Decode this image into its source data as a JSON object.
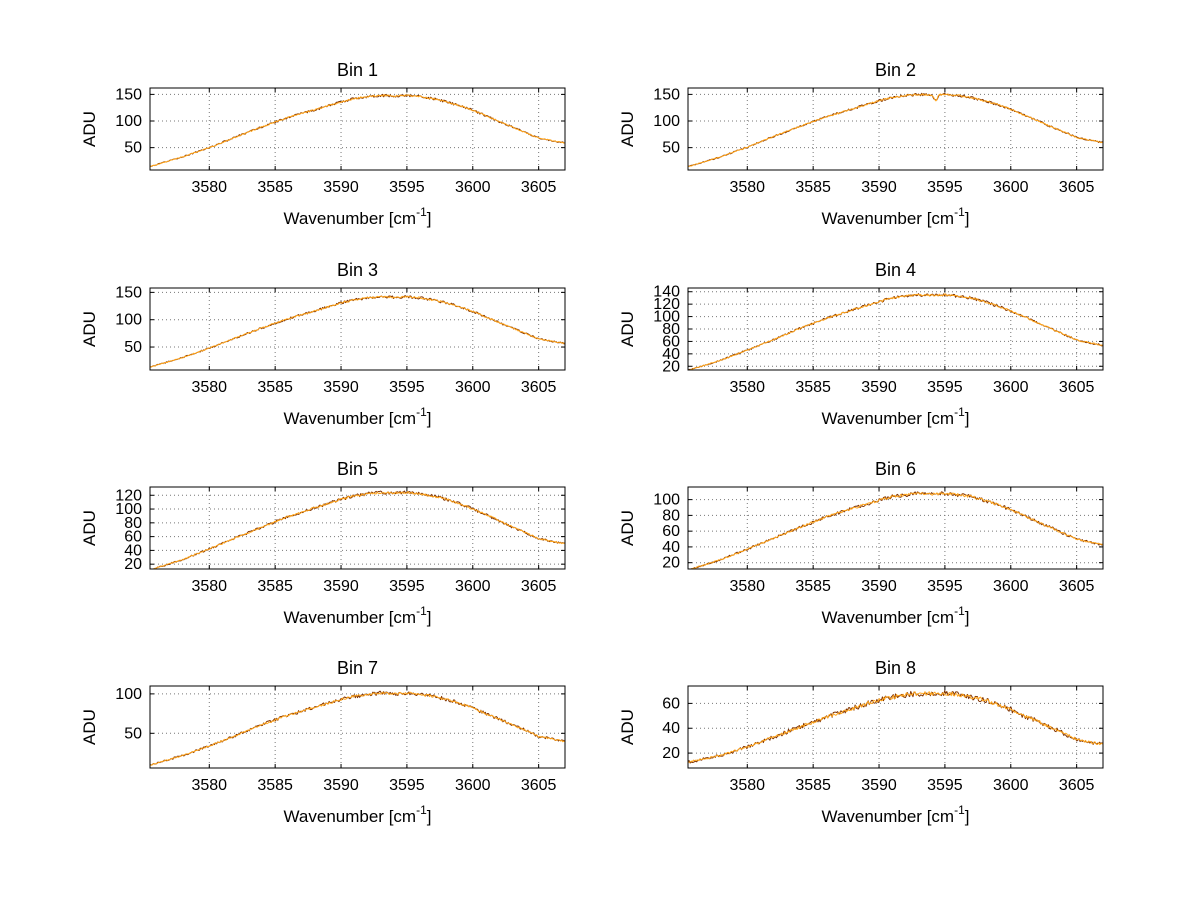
{
  "figure": {
    "background": "#ffffff",
    "ylabel": "ADU",
    "xlabel_base": "Wavenumber [cm",
    "xlabel_sup": "-1",
    "xlabel_close": "]"
  },
  "style": {
    "axis_color": "#000000",
    "grid_color": "#777777",
    "series_colors": [
      "#803300",
      "#ffa51c"
    ],
    "noise": [
      2.0,
      1.3
    ]
  },
  "chart_data": [
    {
      "type": "line",
      "title": "Bin 1",
      "xlabel": "Wavenumber [cm-1]",
      "ylabel": "ADU",
      "xlim": [
        3575.5,
        3607
      ],
      "ylim": [
        8,
        162
      ],
      "xticks": [
        3580,
        3585,
        3590,
        3595,
        3600,
        3605
      ],
      "yticks": [
        50,
        100,
        150
      ],
      "grid": true,
      "x": [
        3575.6,
        3578,
        3580,
        3582,
        3584,
        3586,
        3588,
        3590,
        3591,
        3592,
        3593,
        3594,
        3595,
        3596,
        3597,
        3598,
        3599,
        3600,
        3601,
        3602,
        3603,
        3604,
        3605,
        3606.9
      ],
      "values": [
        15,
        33,
        50,
        70,
        89,
        107,
        121,
        136,
        142,
        146,
        148,
        147,
        148,
        146,
        142,
        136,
        129,
        120,
        110,
        99,
        89,
        78,
        68,
        59
      ]
    },
    {
      "type": "line",
      "title": "Bin 2",
      "xlabel": "Wavenumber [cm-1]",
      "ylabel": "ADU",
      "xlim": [
        3575.5,
        3607
      ],
      "ylim": [
        8,
        162
      ],
      "xticks": [
        3580,
        3585,
        3590,
        3595,
        3600,
        3605
      ],
      "yticks": [
        50,
        100,
        150
      ],
      "grid": true,
      "dip": {
        "x": 3594.3,
        "depth": 11,
        "width": 0.18
      },
      "x": [
        3575.6,
        3578,
        3580,
        3582,
        3584,
        3586,
        3588,
        3590,
        3591,
        3592,
        3593,
        3594,
        3595,
        3596,
        3597,
        3598,
        3599,
        3600,
        3601,
        3602,
        3603,
        3604,
        3605,
        3606.9
      ],
      "values": [
        15,
        33,
        51,
        71,
        90,
        108,
        123,
        138,
        144,
        148,
        150,
        149,
        150,
        148,
        144,
        138,
        131,
        122,
        111,
        101,
        90,
        80,
        69,
        60
      ]
    },
    {
      "type": "line",
      "title": "Bin 3",
      "xlabel": "Wavenumber [cm-1]",
      "ylabel": "ADU",
      "xlim": [
        3575.5,
        3607
      ],
      "ylim": [
        8,
        158
      ],
      "xticks": [
        3580,
        3585,
        3590,
        3595,
        3600,
        3605
      ],
      "yticks": [
        50,
        100,
        150
      ],
      "grid": true,
      "x": [
        3575.6,
        3578,
        3580,
        3582,
        3584,
        3586,
        3588,
        3590,
        3591,
        3592,
        3593,
        3594,
        3595,
        3596,
        3597,
        3598,
        3599,
        3600,
        3601,
        3602,
        3603,
        3604,
        3605,
        3606.9
      ],
      "values": [
        14,
        31,
        48,
        67,
        85,
        102,
        116,
        131,
        136,
        140,
        142,
        141,
        142,
        140,
        136,
        131,
        124,
        115,
        105,
        95,
        85,
        75,
        65,
        57
      ]
    },
    {
      "type": "line",
      "title": "Bin 4",
      "xlabel": "Wavenumber [cm-1]",
      "ylabel": "ADU",
      "xlim": [
        3575.5,
        3607
      ],
      "ylim": [
        14,
        146
      ],
      "xticks": [
        3580,
        3585,
        3590,
        3595,
        3600,
        3605
      ],
      "yticks": [
        20,
        40,
        60,
        80,
        100,
        120,
        140
      ],
      "grid": true,
      "x": [
        3575.6,
        3578,
        3580,
        3582,
        3584,
        3586,
        3588,
        3590,
        3591,
        3592,
        3593,
        3594,
        3595,
        3596,
        3597,
        3598,
        3599,
        3600,
        3601,
        3602,
        3603,
        3604,
        3605,
        3606.9
      ],
      "values": [
        14,
        30,
        46,
        63,
        81,
        97,
        111,
        124,
        130,
        133,
        135,
        134,
        135,
        133,
        130,
        124,
        117,
        109,
        100,
        90,
        81,
        72,
        62,
        54
      ]
    },
    {
      "type": "line",
      "title": "Bin 5",
      "xlabel": "Wavenumber [cm-1]",
      "ylabel": "ADU",
      "xlim": [
        3575.5,
        3607
      ],
      "ylim": [
        13,
        132
      ],
      "xticks": [
        3580,
        3585,
        3590,
        3595,
        3600,
        3605
      ],
      "yticks": [
        20,
        40,
        60,
        80,
        100,
        120
      ],
      "grid": true,
      "x": [
        3575.6,
        3578,
        3580,
        3582,
        3584,
        3586,
        3588,
        3590,
        3591,
        3592,
        3593,
        3594,
        3595,
        3596,
        3597,
        3598,
        3599,
        3600,
        3601,
        3602,
        3603,
        3604,
        3605,
        3606.9
      ],
      "values": [
        12,
        27,
        42,
        58,
        74,
        89,
        102,
        114,
        119,
        122,
        124,
        123,
        124,
        122,
        119,
        114,
        108,
        100,
        92,
        83,
        74,
        66,
        57,
        50
      ]
    },
    {
      "type": "line",
      "title": "Bin 6",
      "xlabel": "Wavenumber [cm-1]",
      "ylabel": "ADU",
      "xlim": [
        3575.5,
        3607
      ],
      "ylim": [
        12,
        116
      ],
      "xticks": [
        3580,
        3585,
        3590,
        3595,
        3600,
        3605
      ],
      "yticks": [
        20,
        40,
        60,
        80,
        100
      ],
      "grid": true,
      "x": [
        3575.6,
        3578,
        3580,
        3582,
        3584,
        3586,
        3588,
        3590,
        3591,
        3592,
        3593,
        3594,
        3595,
        3596,
        3597,
        3598,
        3599,
        3600,
        3601,
        3602,
        3603,
        3604,
        3605,
        3606.9
      ],
      "values": [
        11,
        24,
        37,
        51,
        65,
        78,
        89,
        99,
        104,
        106,
        108,
        107,
        108,
        106,
        104,
        99,
        94,
        87,
        80,
        72,
        65,
        57,
        50,
        43
      ]
    },
    {
      "type": "line",
      "title": "Bin 7",
      "xlabel": "Wavenumber [cm-1]",
      "ylabel": "ADU",
      "xlim": [
        3575.5,
        3607
      ],
      "ylim": [
        6,
        110
      ],
      "xticks": [
        3580,
        3585,
        3590,
        3595,
        3600,
        3605
      ],
      "yticks": [
        50,
        100
      ],
      "grid": true,
      "x": [
        3575.6,
        3578,
        3580,
        3582,
        3584,
        3586,
        3588,
        3590,
        3591,
        3592,
        3593,
        3594,
        3595,
        3596,
        3597,
        3598,
        3599,
        3600,
        3601,
        3602,
        3603,
        3604,
        3605,
        3606.9
      ],
      "values": [
        10,
        22,
        34,
        47,
        61,
        73,
        83,
        93,
        97,
        99,
        101,
        100,
        101,
        99,
        97,
        93,
        88,
        82,
        75,
        68,
        61,
        54,
        46,
        40
      ]
    },
    {
      "type": "line",
      "title": "Bin 8",
      "xlabel": "Wavenumber [cm-1]",
      "ylabel": "ADU",
      "xlim": [
        3575.5,
        3607
      ],
      "ylim": [
        8,
        74
      ],
      "xticks": [
        3580,
        3585,
        3590,
        3595,
        3600,
        3605
      ],
      "yticks": [
        20,
        40,
        60
      ],
      "grid": true,
      "x": [
        3575.6,
        3578,
        3580,
        3582,
        3584,
        3586,
        3588,
        3590,
        3591,
        3592,
        3593,
        3594,
        3595,
        3596,
        3597,
        3598,
        3599,
        3600,
        3601,
        3602,
        3603,
        3604,
        3605,
        3606.9
      ],
      "values": [
        13,
        18,
        25,
        33,
        41,
        49,
        56,
        63,
        65,
        67,
        68,
        68,
        68,
        67,
        65,
        63,
        59,
        55,
        50,
        46,
        41,
        36,
        31,
        27
      ]
    }
  ]
}
